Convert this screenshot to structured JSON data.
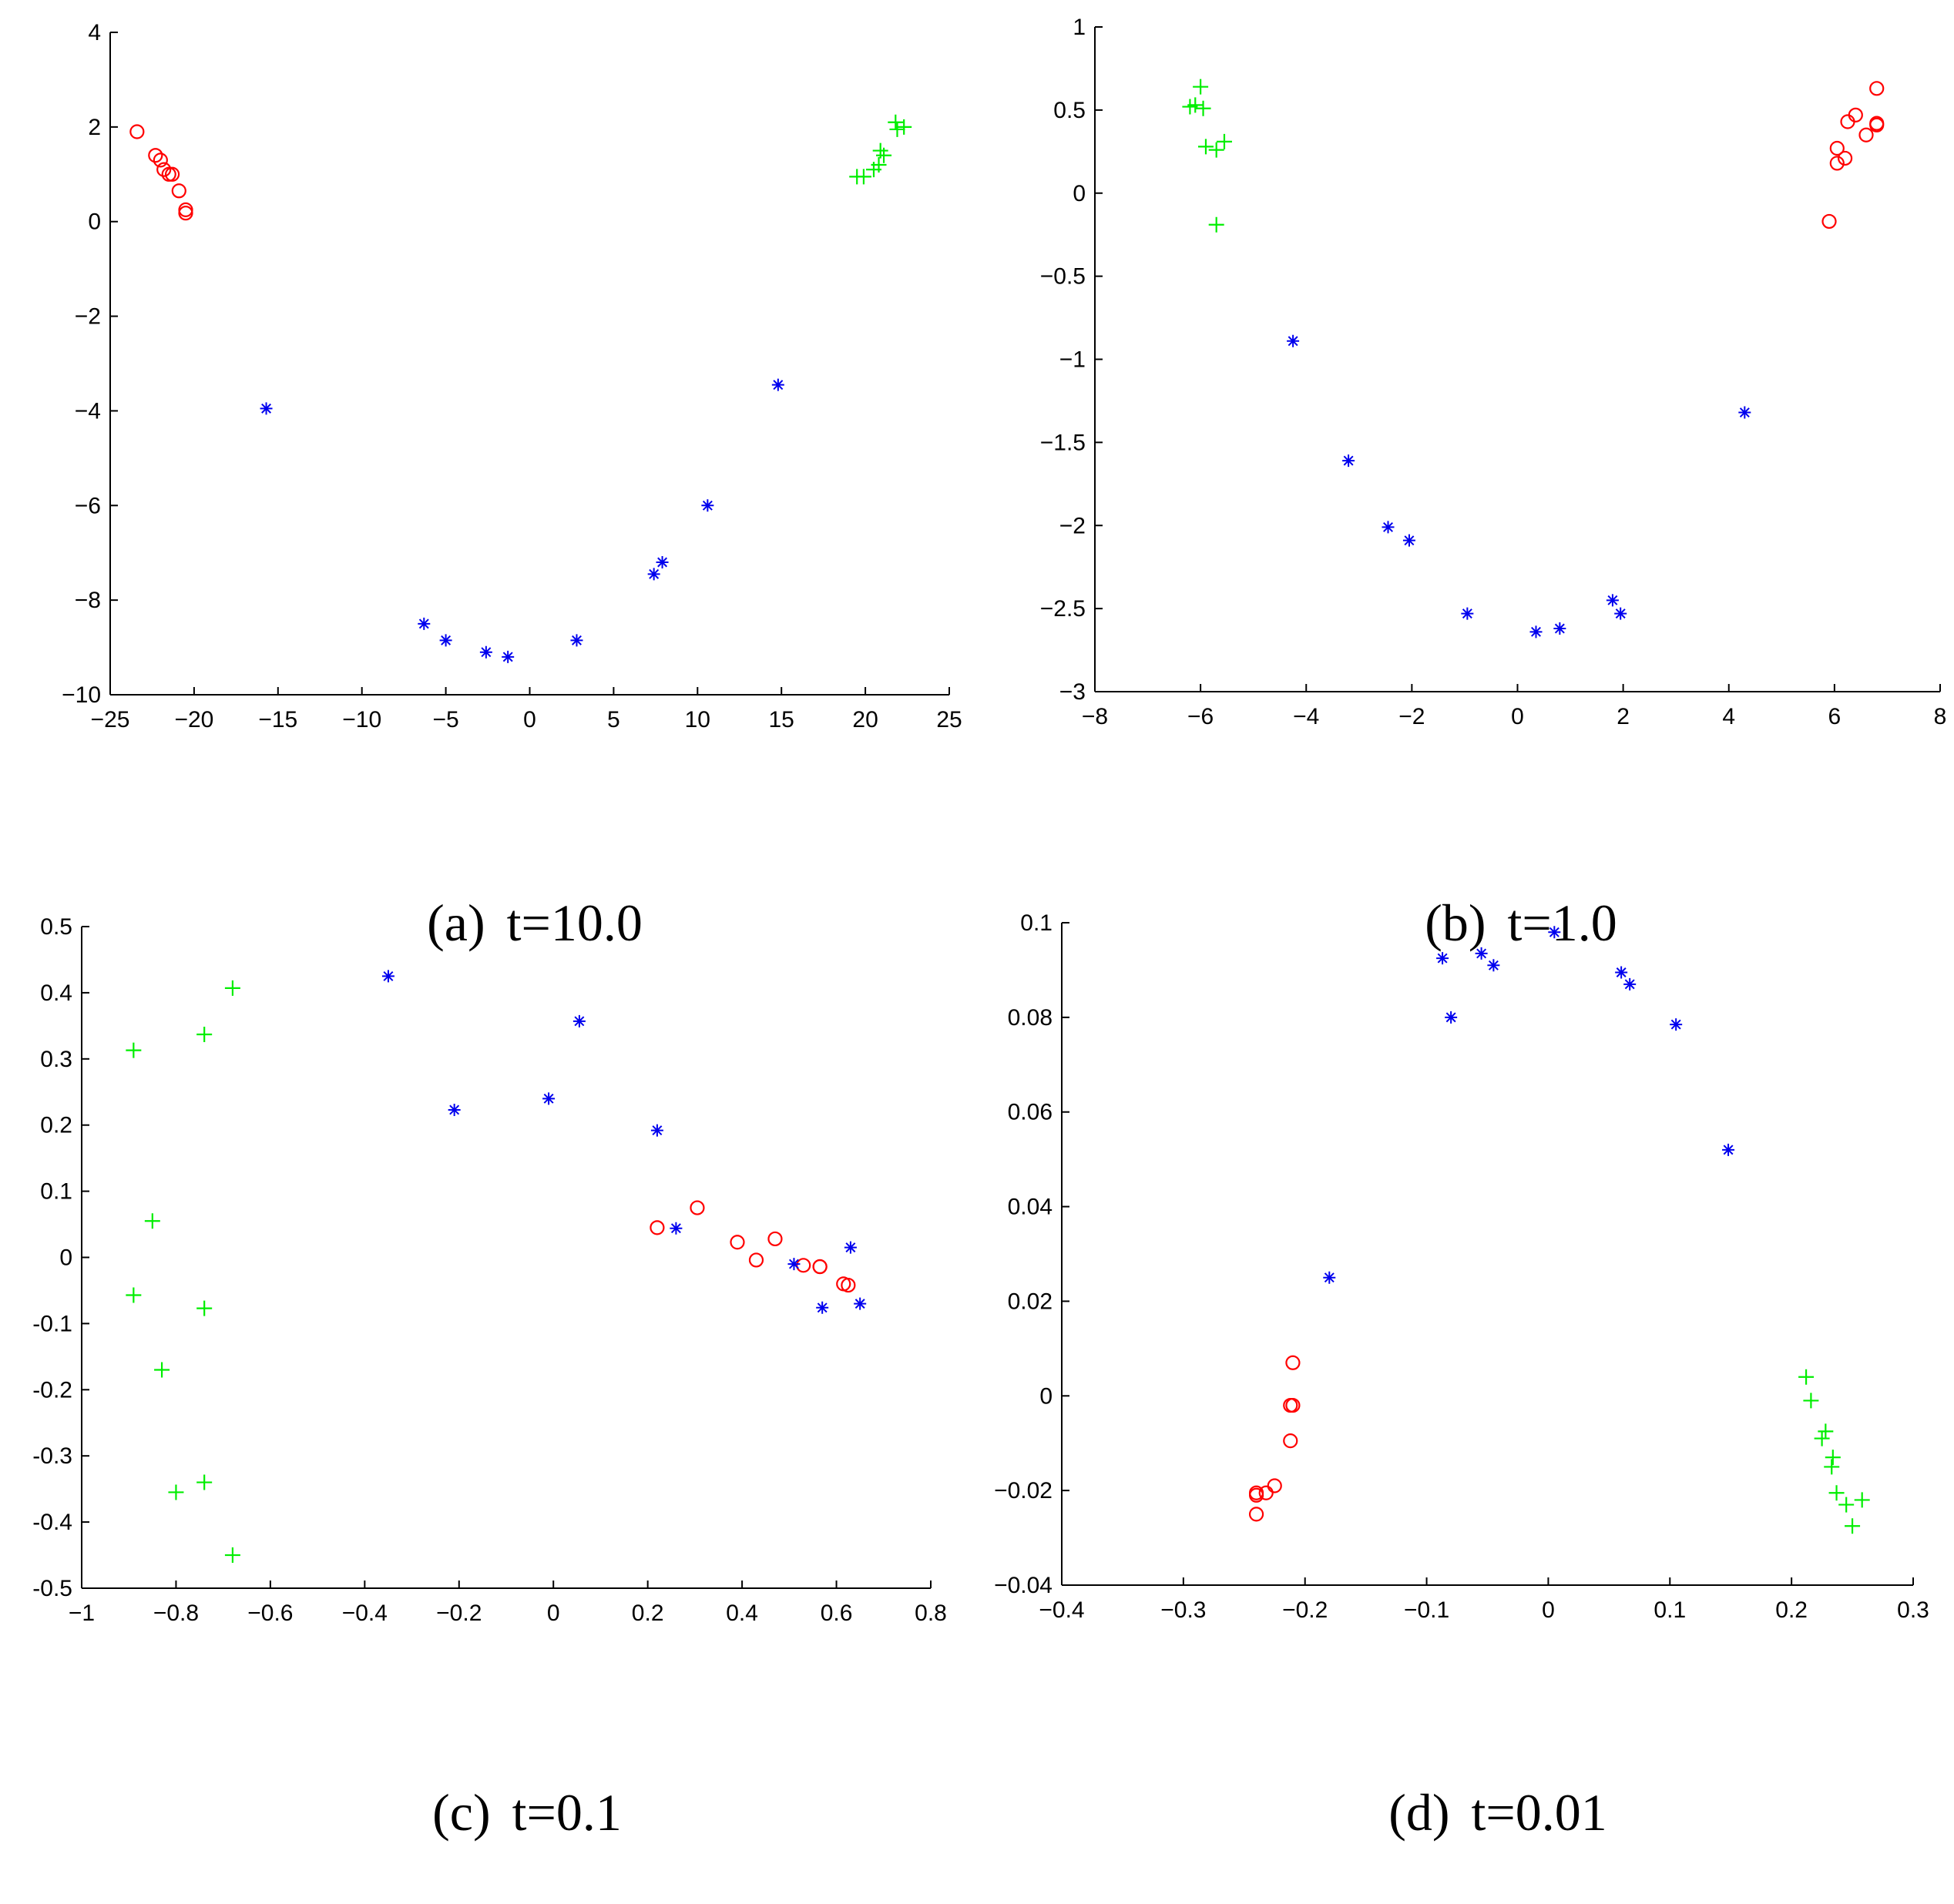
{
  "colors": {
    "red": "#ff0000",
    "green": "#00ee00",
    "blue": "#0000ee",
    "axis": "#000000"
  },
  "chart_data": [
    {
      "type": "scatter",
      "caption_label": "(a)",
      "caption_param": "t=10.0",
      "xlim": [
        -25,
        25
      ],
      "ylim": [
        -10,
        4
      ],
      "xticks": [
        -25,
        -20,
        -15,
        -10,
        -5,
        0,
        5,
        10,
        15,
        20,
        25
      ],
      "xtick_labels": [
        "−25",
        "−20",
        "−15",
        "−10",
        "−5",
        "0",
        "5",
        "10",
        "15",
        "20",
        "25"
      ],
      "yticks": [
        -10,
        -8,
        -6,
        -4,
        -2,
        0,
        2,
        4
      ],
      "ytick_labels": [
        "−10",
        "−8",
        "−6",
        "−4",
        "−2",
        "0",
        "2",
        "4"
      ],
      "series": [
        {
          "name": "circle",
          "marker": "o",
          "color": "red",
          "points": [
            [
              -23.4,
              1.9
            ],
            [
              -22.3,
              1.4
            ],
            [
              -22.0,
              1.3
            ],
            [
              -21.8,
              1.1
            ],
            [
              -21.5,
              1.0
            ],
            [
              -21.3,
              1.0
            ],
            [
              -20.9,
              0.65
            ],
            [
              -20.5,
              0.25
            ],
            [
              -20.5,
              0.18
            ]
          ]
        },
        {
          "name": "plus",
          "marker": "+",
          "color": "green",
          "points": [
            [
              19.5,
              0.95
            ],
            [
              19.9,
              0.95
            ],
            [
              20.5,
              1.1
            ],
            [
              20.8,
              1.2
            ],
            [
              20.9,
              1.5
            ],
            [
              21.1,
              1.4
            ],
            [
              21.8,
              2.1
            ],
            [
              21.9,
              1.95
            ],
            [
              22.3,
              2.0
            ]
          ]
        },
        {
          "name": "star",
          "marker": "*",
          "color": "blue",
          "points": [
            [
              -15.7,
              -3.95
            ],
            [
              -6.3,
              -8.5
            ],
            [
              -5.0,
              -8.85
            ],
            [
              -2.6,
              -9.1
            ],
            [
              -1.3,
              -9.2
            ],
            [
              2.8,
              -8.85
            ],
            [
              7.4,
              -7.45
            ],
            [
              7.9,
              -7.2
            ],
            [
              10.6,
              -6.0
            ],
            [
              14.8,
              -3.45
            ]
          ]
        }
      ]
    },
    {
      "type": "scatter",
      "caption_label": "(b)",
      "caption_param": "t=1.0",
      "xlim": [
        -8,
        8
      ],
      "ylim": [
        -3,
        1
      ],
      "xticks": [
        -8,
        -6,
        -4,
        -2,
        0,
        2,
        4,
        6,
        8
      ],
      "xtick_labels": [
        "−8",
        "−6",
        "−4",
        "−2",
        "0",
        "2",
        "4",
        "6",
        "8"
      ],
      "yticks": [
        -3,
        -2.5,
        -2,
        -1.5,
        -1,
        -0.5,
        0,
        0.5,
        1
      ],
      "ytick_labels": [
        "−3",
        "−2.5",
        "−2",
        "−1.5",
        "−1",
        "−0.5",
        "0",
        "0.5",
        "1"
      ],
      "series": [
        {
          "name": "circle",
          "marker": "o",
          "color": "red",
          "points": [
            [
              5.9,
              -0.17
            ],
            [
              6.05,
              0.27
            ],
            [
              6.05,
              0.18
            ],
            [
              6.2,
              0.21
            ],
            [
              6.25,
              0.43
            ],
            [
              6.4,
              0.47
            ],
            [
              6.6,
              0.35
            ],
            [
              6.8,
              0.41
            ],
            [
              6.8,
              0.63
            ],
            [
              6.8,
              0.42
            ]
          ]
        },
        {
          "name": "plus",
          "marker": "+",
          "color": "green",
          "points": [
            [
              -6.2,
              0.52
            ],
            [
              -6.1,
              0.53
            ],
            [
              -6.0,
              0.64
            ],
            [
              -5.95,
              0.51
            ],
            [
              -5.9,
              0.28
            ],
            [
              -5.7,
              0.26
            ],
            [
              -5.55,
              0.31
            ],
            [
              -5.7,
              -0.19
            ]
          ]
        },
        {
          "name": "star",
          "marker": "*",
          "color": "blue",
          "points": [
            [
              -4.25,
              -0.89
            ],
            [
              -3.2,
              -1.61
            ],
            [
              -2.45,
              -2.01
            ],
            [
              -2.05,
              -2.09
            ],
            [
              -0.95,
              -2.53
            ],
            [
              0.35,
              -2.64
            ],
            [
              0.8,
              -2.62
            ],
            [
              1.8,
              -2.45
            ],
            [
              1.95,
              -2.53
            ],
            [
              4.3,
              -1.32
            ]
          ]
        }
      ]
    },
    {
      "type": "scatter",
      "caption_label": "(c)",
      "caption_param": "t=0.1",
      "xlim": [
        -1,
        0.8
      ],
      "ylim": [
        -0.5,
        0.5
      ],
      "xticks": [
        -1,
        -0.8,
        -0.6,
        -0.4,
        -0.2,
        0,
        0.2,
        0.4,
        0.6,
        0.8
      ],
      "xtick_labels": [
        "−1",
        "−0.8",
        "−0.6",
        "−0.4",
        "−0.2",
        "0",
        "0.2",
        "0.4",
        "0.6",
        "0.8"
      ],
      "yticks": [
        -0.5,
        -0.4,
        -0.3,
        -0.2,
        -0.1,
        0,
        0.1,
        0.2,
        0.3,
        0.4,
        0.5
      ],
      "ytick_labels": [
        "-0.5",
        "-0.4",
        "-0.3",
        "-0.2",
        "-0.1",
        "0",
        "0.1",
        "0.2",
        "0.3",
        "0.4",
        "0.5"
      ],
      "series": [
        {
          "name": "circle",
          "marker": "o",
          "color": "red",
          "points": [
            [
              0.22,
              0.045
            ],
            [
              0.305,
              0.075
            ],
            [
              0.39,
              0.023
            ],
            [
              0.43,
              -0.004
            ],
            [
              0.47,
              0.028
            ],
            [
              0.53,
              -0.012
            ],
            [
              0.565,
              -0.014
            ],
            [
              0.615,
              -0.04
            ],
            [
              0.625,
              -0.042
            ],
            [
              0.565,
              -0.014
            ]
          ]
        },
        {
          "name": "plus",
          "marker": "+",
          "color": "green",
          "points": [
            [
              -0.89,
              0.313
            ],
            [
              -0.74,
              0.337
            ],
            [
              -0.68,
              0.407
            ],
            [
              -0.85,
              0.055
            ],
            [
              -0.89,
              -0.057
            ],
            [
              -0.74,
              -0.077
            ],
            [
              -0.83,
              -0.17
            ],
            [
              -0.74,
              -0.34
            ],
            [
              -0.8,
              -0.355
            ],
            [
              -0.68,
              -0.45
            ]
          ]
        },
        {
          "name": "star",
          "marker": "*",
          "color": "blue",
          "points": [
            [
              -0.35,
              0.425
            ],
            [
              0.055,
              0.357
            ],
            [
              -0.21,
              0.223
            ],
            [
              -0.01,
              0.24
            ],
            [
              0.22,
              0.192
            ],
            [
              0.26,
              0.044
            ],
            [
              0.51,
              -0.01
            ],
            [
              0.63,
              0.015
            ],
            [
              0.57,
              -0.076
            ],
            [
              0.65,
              -0.07
            ]
          ]
        }
      ]
    },
    {
      "type": "scatter",
      "caption_label": "(d)",
      "caption_param": "t=0.01",
      "xlim": [
        -0.4,
        0.3
      ],
      "ylim": [
        -0.04,
        0.1
      ],
      "xticks": [
        -0.4,
        -0.3,
        -0.2,
        -0.1,
        0,
        0.1,
        0.2,
        0.3
      ],
      "xtick_labels": [
        "−0.4",
        "−0.3",
        "−0.2",
        "−0.1",
        "0",
        "0.1",
        "0.2",
        "0.3"
      ],
      "yticks": [
        -0.04,
        -0.02,
        0,
        0.02,
        0.04,
        0.06,
        0.08,
        0.1
      ],
      "ytick_labels": [
        "−0.04",
        "−0.02",
        "0",
        "0.02",
        "0.04",
        "0.06",
        "0.08",
        "0.1"
      ],
      "series": [
        {
          "name": "circle",
          "marker": "o",
          "color": "red",
          "points": [
            [
              -0.21,
              0.007
            ],
            [
              -0.212,
              -0.002
            ],
            [
              -0.21,
              -0.002
            ],
            [
              -0.212,
              -0.0095
            ],
            [
              -0.225,
              -0.019
            ],
            [
              -0.232,
              -0.0205
            ],
            [
              -0.24,
              -0.0205
            ],
            [
              -0.24,
              -0.021
            ],
            [
              -0.24,
              -0.025
            ]
          ]
        },
        {
          "name": "plus",
          "marker": "+",
          "color": "green",
          "points": [
            [
              0.212,
              0.004
            ],
            [
              0.216,
              -0.001
            ],
            [
              0.225,
              -0.009
            ],
            [
              0.228,
              -0.0075
            ],
            [
              0.234,
              -0.013
            ],
            [
              0.233,
              -0.015
            ],
            [
              0.237,
              -0.0205
            ],
            [
              0.245,
              -0.023
            ],
            [
              0.258,
              -0.022
            ],
            [
              0.25,
              -0.0275
            ]
          ]
        },
        {
          "name": "star",
          "marker": "*",
          "color": "blue",
          "points": [
            [
              -0.18,
              0.025
            ],
            [
              -0.087,
              0.0925
            ],
            [
              -0.08,
              0.08
            ],
            [
              -0.055,
              0.0935
            ],
            [
              -0.045,
              0.091
            ],
            [
              0.005,
              0.098
            ],
            [
              0.06,
              0.0895
            ],
            [
              0.067,
              0.087
            ],
            [
              0.105,
              0.0785
            ],
            [
              0.148,
              0.052
            ]
          ]
        }
      ]
    }
  ]
}
